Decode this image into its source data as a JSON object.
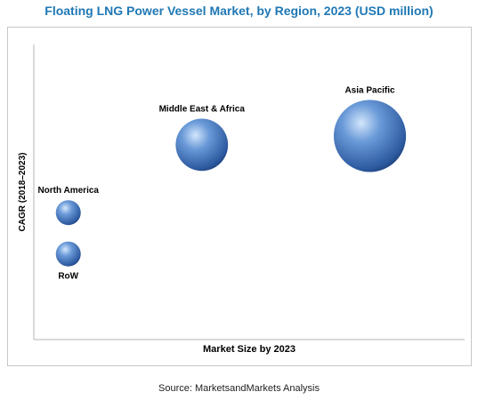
{
  "chart_data": {
    "type": "scatter",
    "title": "Floating LNG Power Vessel Market, by Region, 2023 (USD million)",
    "xlabel": "Market Size by 2023",
    "ylabel": "CAGR (2018–2023)",
    "source": "Source: MarketsandMarkets Analysis",
    "axis_ticks": false,
    "grid": false,
    "bubble_color": "#3d6fb8",
    "points": [
      {
        "label": "North America",
        "x": 0.08,
        "y": 0.43,
        "size": 1.0,
        "label_position": "above"
      },
      {
        "label": "RoW",
        "x": 0.08,
        "y": 0.29,
        "size": 1.0,
        "label_position": "below"
      },
      {
        "label": "Middle East & Africa",
        "x": 0.39,
        "y": 0.66,
        "size": 2.1,
        "label_position": "above"
      },
      {
        "label": "Asia Pacific",
        "x": 0.78,
        "y": 0.69,
        "size": 2.9,
        "label_position": "above"
      }
    ]
  }
}
